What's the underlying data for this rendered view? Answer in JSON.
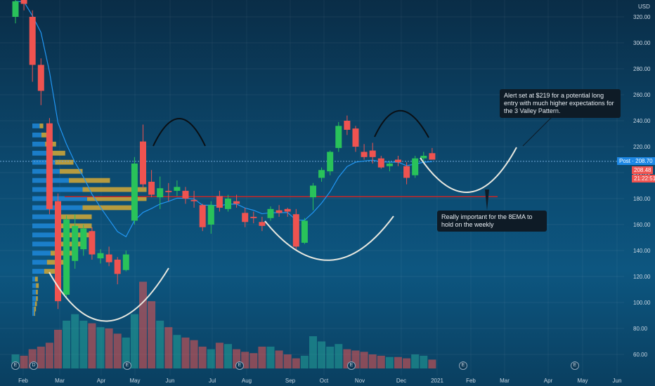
{
  "chart_data": {
    "type": "candlestick",
    "currency": "USD",
    "y_ticks": [
      "60.00",
      "80.00",
      "100.00",
      "120.00",
      "140.00",
      "160.00",
      "180.00",
      "200.00",
      "220.00",
      "240.00",
      "260.00",
      "280.00",
      "300.00",
      "320.00"
    ],
    "ylim": [
      50,
      335
    ],
    "x_ticks": [
      "Feb",
      "Mar",
      "Apr",
      "May",
      "Jun",
      "Jul",
      "Aug",
      "Sep",
      "Oct",
      "Nov",
      "Dec",
      "2021",
      "Feb",
      "Mar",
      "Apr",
      "May",
      "Jun"
    ],
    "candles": [
      {
        "o": 320,
        "h": 335,
        "l": 315,
        "c": 332
      },
      {
        "o": 335,
        "h": 340,
        "l": 325,
        "c": 330
      },
      {
        "o": 320,
        "h": 325,
        "l": 270,
        "c": 283
      },
      {
        "o": 283,
        "h": 288,
        "l": 252,
        "c": 263
      },
      {
        "o": 238,
        "h": 242,
        "l": 168,
        "c": 172
      },
      {
        "o": 178,
        "h": 184,
        "l": 95,
        "c": 101
      },
      {
        "o": 106,
        "h": 167,
        "l": 104,
        "c": 164
      },
      {
        "o": 132,
        "h": 168,
        "l": 126,
        "c": 159
      },
      {
        "o": 141,
        "h": 160,
        "l": 136,
        "c": 157
      },
      {
        "o": 155,
        "h": 158,
        "l": 133,
        "c": 137
      },
      {
        "o": 134,
        "h": 141,
        "l": 130,
        "c": 138
      },
      {
        "o": 137,
        "h": 143,
        "l": 128,
        "c": 131
      },
      {
        "o": 133,
        "h": 135,
        "l": 114,
        "c": 122
      },
      {
        "o": 125,
        "h": 140,
        "l": 124,
        "c": 137
      },
      {
        "o": 163,
        "h": 212,
        "l": 160,
        "c": 207
      },
      {
        "o": 224,
        "h": 237,
        "l": 188,
        "c": 191
      },
      {
        "o": 193,
        "h": 202,
        "l": 181,
        "c": 183
      },
      {
        "o": 181,
        "h": 197,
        "l": 172,
        "c": 188
      },
      {
        "o": 186,
        "h": 192,
        "l": 178,
        "c": 185
      },
      {
        "o": 186,
        "h": 194,
        "l": 182,
        "c": 189
      },
      {
        "o": 186,
        "h": 189,
        "l": 176,
        "c": 180
      },
      {
        "o": 179,
        "h": 186,
        "l": 173,
        "c": 178
      },
      {
        "o": 175,
        "h": 176,
        "l": 155,
        "c": 158
      },
      {
        "o": 160,
        "h": 178,
        "l": 153,
        "c": 175
      },
      {
        "o": 182,
        "h": 186,
        "l": 170,
        "c": 173
      },
      {
        "o": 172,
        "h": 183,
        "l": 170,
        "c": 180
      },
      {
        "o": 178,
        "h": 183,
        "l": 173,
        "c": 176
      },
      {
        "o": 169,
        "h": 173,
        "l": 158,
        "c": 162
      },
      {
        "o": 166,
        "h": 170,
        "l": 161,
        "c": 165
      },
      {
        "o": 162,
        "h": 166,
        "l": 155,
        "c": 159
      },
      {
        "o": 165,
        "h": 174,
        "l": 163,
        "c": 172
      },
      {
        "o": 171,
        "h": 175,
        "l": 166,
        "c": 169
      },
      {
        "o": 172,
        "h": 173,
        "l": 166,
        "c": 170
      },
      {
        "o": 168,
        "h": 172,
        "l": 140,
        "c": 143
      },
      {
        "o": 146,
        "h": 165,
        "l": 145,
        "c": 163
      },
      {
        "o": 181,
        "h": 192,
        "l": 171,
        "c": 190
      },
      {
        "o": 196,
        "h": 204,
        "l": 193,
        "c": 202
      },
      {
        "o": 201,
        "h": 217,
        "l": 198,
        "c": 216
      },
      {
        "o": 219,
        "h": 239,
        "l": 216,
        "c": 236
      },
      {
        "o": 240,
        "h": 244,
        "l": 229,
        "c": 233
      },
      {
        "o": 234,
        "h": 236,
        "l": 216,
        "c": 220
      },
      {
        "o": 216,
        "h": 222,
        "l": 210,
        "c": 212
      },
      {
        "o": 217,
        "h": 223,
        "l": 207,
        "c": 212
      },
      {
        "o": 211,
        "h": 213,
        "l": 203,
        "c": 204
      },
      {
        "o": 205,
        "h": 209,
        "l": 201,
        "c": 207
      },
      {
        "o": 210,
        "h": 213,
        "l": 205,
        "c": 208
      },
      {
        "o": 205,
        "h": 208,
        "l": 191,
        "c": 196
      },
      {
        "o": 198,
        "h": 213,
        "l": 196,
        "c": 211
      },
      {
        "o": 211,
        "h": 216,
        "l": 208,
        "c": 213
      },
      {
        "o": 215,
        "h": 219,
        "l": 210,
        "c": 210
      }
    ],
    "volume_bars": [
      60,
      59,
      64,
      66,
      69,
      79,
      86,
      91,
      86,
      84,
      81,
      80,
      76,
      73,
      91,
      116,
      101,
      86,
      81,
      75,
      73,
      71,
      66,
      64,
      69,
      68,
      64,
      62,
      61,
      66,
      66,
      63,
      60,
      57,
      59,
      74,
      70,
      66,
      68,
      64,
      63,
      62,
      60,
      59,
      58,
      58,
      57,
      60,
      59,
      56
    ],
    "volume_profile": [
      {
        "price": 91.5,
        "a": 2,
        "b": 1
      },
      {
        "price": 95,
        "a": 2,
        "b": 2
      },
      {
        "price": 99,
        "a": 3,
        "b": 2
      },
      {
        "price": 103,
        "a": 4,
        "b": 2
      },
      {
        "price": 108,
        "a": 4,
        "b": 2
      },
      {
        "price": 113,
        "a": 4,
        "b": 3
      },
      {
        "price": 118,
        "a": 3,
        "b": 3
      },
      {
        "price": 124,
        "a": 13,
        "b": 15
      },
      {
        "price": 131,
        "a": 16,
        "b": 20
      },
      {
        "price": 138,
        "a": 20,
        "b": 24
      },
      {
        "price": 145,
        "a": 25,
        "b": 28
      },
      {
        "price": 152,
        "a": 30,
        "b": 32
      },
      {
        "price": 159,
        "a": 30,
        "b": 35
      },
      {
        "price": 166,
        "a": 28,
        "b": 37
      },
      {
        "price": 173,
        "a": 55,
        "b": 60
      },
      {
        "price": 180,
        "a": 60,
        "b": 65
      },
      {
        "price": 187,
        "a": 55,
        "b": 70
      },
      {
        "price": 194,
        "a": 40,
        "b": 45
      },
      {
        "price": 201,
        "a": 30,
        "b": 25
      },
      {
        "price": 208,
        "a": 25,
        "b": 20
      },
      {
        "price": 215,
        "a": 20,
        "b": 16
      },
      {
        "price": 222,
        "a": 14,
        "b": 12
      },
      {
        "price": 229,
        "a": 10,
        "b": 8
      },
      {
        "price": 236,
        "a": 8,
        "b": 4
      }
    ],
    "horizontal_line": 181.5,
    "current_price_line": 208.7,
    "annotations": [
      "Alert set at $219 for a potential long entry with much higher expectations for the 3 Valley Pattern.",
      "Really important for the 8EMA to hold on the weekly"
    ],
    "price_badges": {
      "post": "Post · 208.70",
      "last": "208.48",
      "timer": "21:22:51"
    },
    "event_markers": [
      "E",
      "D",
      "E",
      "E",
      "E",
      "E",
      "E"
    ]
  },
  "colors": {
    "up": "#26a69a",
    "up_bright": "#29c25a",
    "down": "#ef5350",
    "ema": "#2196f3",
    "profile_a": "#1f87d8",
    "profile_b": "#c9a43a",
    "hline": "#c62828",
    "arc_white": "#e8e8e0",
    "arc_black": "#0a0f14"
  }
}
